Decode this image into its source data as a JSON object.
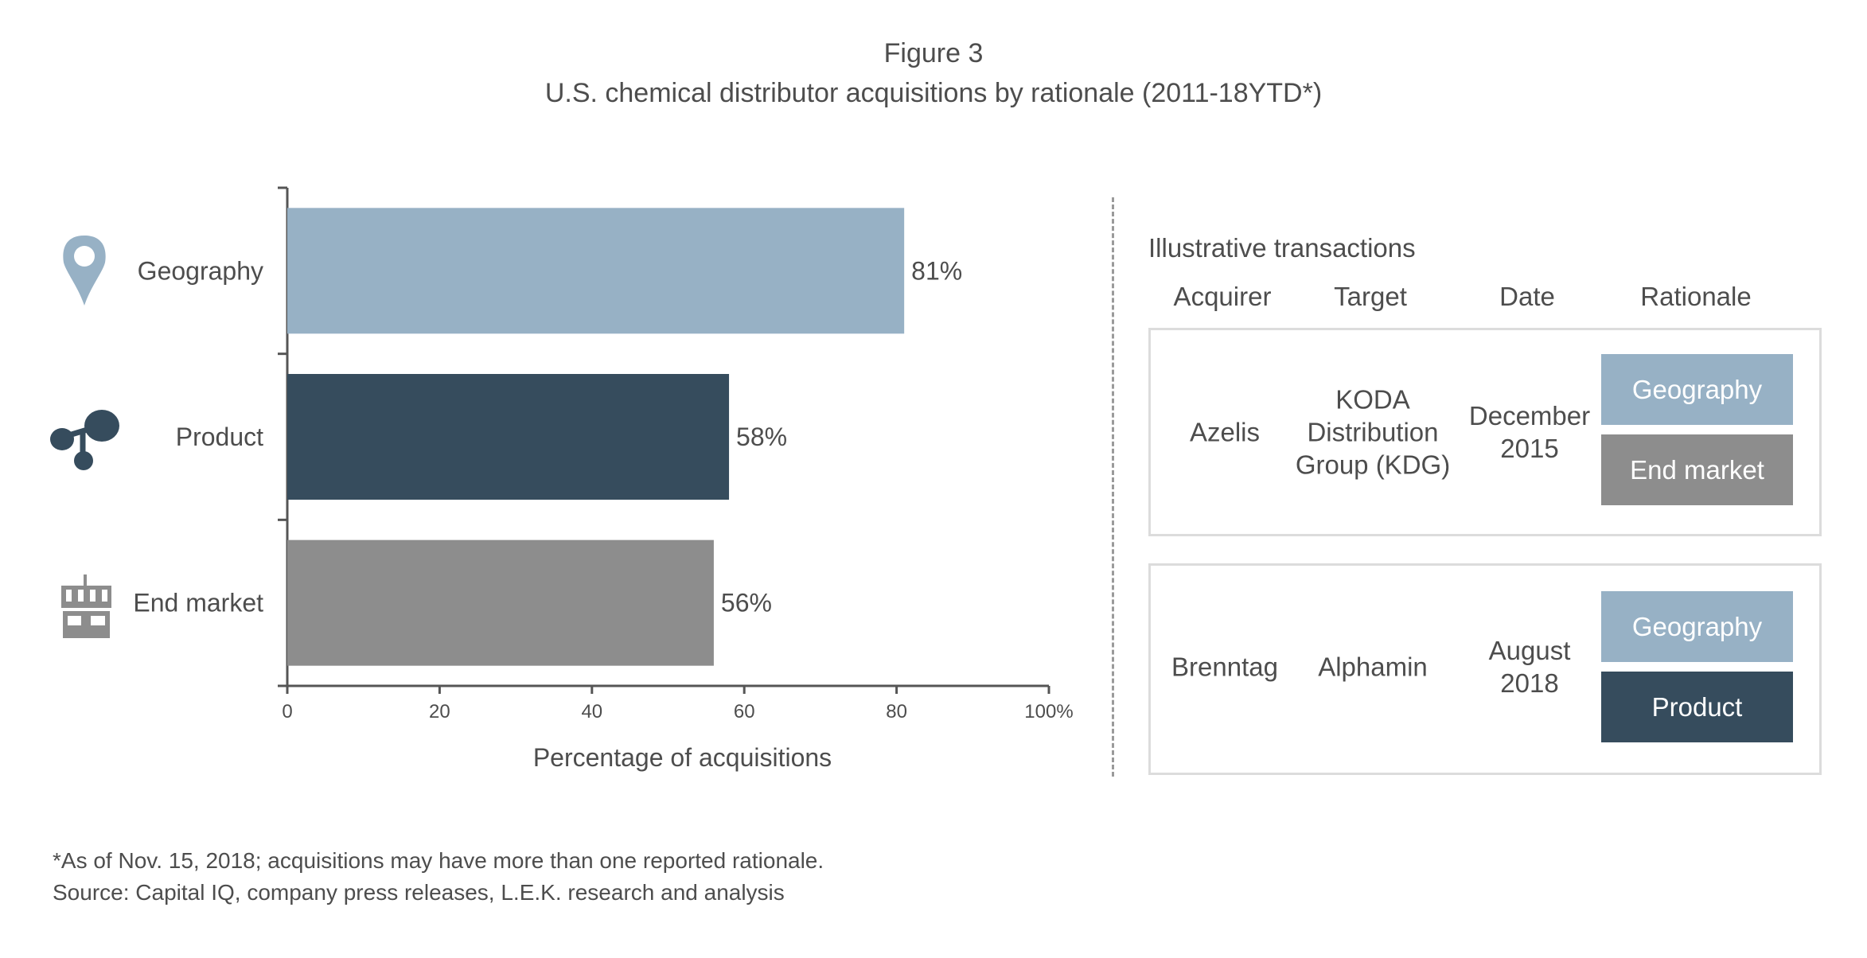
{
  "header": {
    "figure_label": "Figure 3",
    "title": "U.S. chemical distributor acquisitions by rationale (2011-18YTD*)"
  },
  "chart_data": {
    "type": "bar",
    "orientation": "horizontal",
    "categories": [
      "Geography",
      "Product",
      "End market"
    ],
    "values": [
      81,
      58,
      56
    ],
    "data_labels": [
      "81%",
      "58%",
      "56%"
    ],
    "category_icons": [
      "map-pin-icon",
      "molecule-icon",
      "storefront-icon"
    ],
    "colors": [
      "#97b1c5",
      "#364c5d",
      "#8d8d8d"
    ],
    "xlabel": "Percentage of acquisitions",
    "xlim": [
      0,
      100
    ],
    "xticks": [
      0,
      20,
      40,
      60,
      80,
      100
    ],
    "xtick_labels": [
      "0",
      "20",
      "40",
      "60",
      "80",
      "100%"
    ],
    "grid": false,
    "legend": "none"
  },
  "transactions": {
    "title": "Illustrative transactions",
    "columns": [
      "Acquirer",
      "Target",
      "Date",
      "Rationale"
    ],
    "rows": [
      {
        "acquirer": "Azelis",
        "target": "KODA\nDistribution\nGroup (KDG)",
        "date": "December\n2015",
        "rationales": [
          {
            "label": "Geography",
            "color": "#97b1c5"
          },
          {
            "label": "End market",
            "color": "#8d8d8d"
          }
        ]
      },
      {
        "acquirer": "Brenntag",
        "target": "Alphamin",
        "date": "August\n2018",
        "rationales": [
          {
            "label": "Geography",
            "color": "#97b1c5"
          },
          {
            "label": "Product",
            "color": "#364c5d"
          }
        ]
      }
    ]
  },
  "footnotes": {
    "note": "*As of Nov. 15, 2018; acquisitions may have more than one reported rationale.",
    "source": "Source: Capital IQ, company press releases, L.E.K. research and analysis"
  }
}
